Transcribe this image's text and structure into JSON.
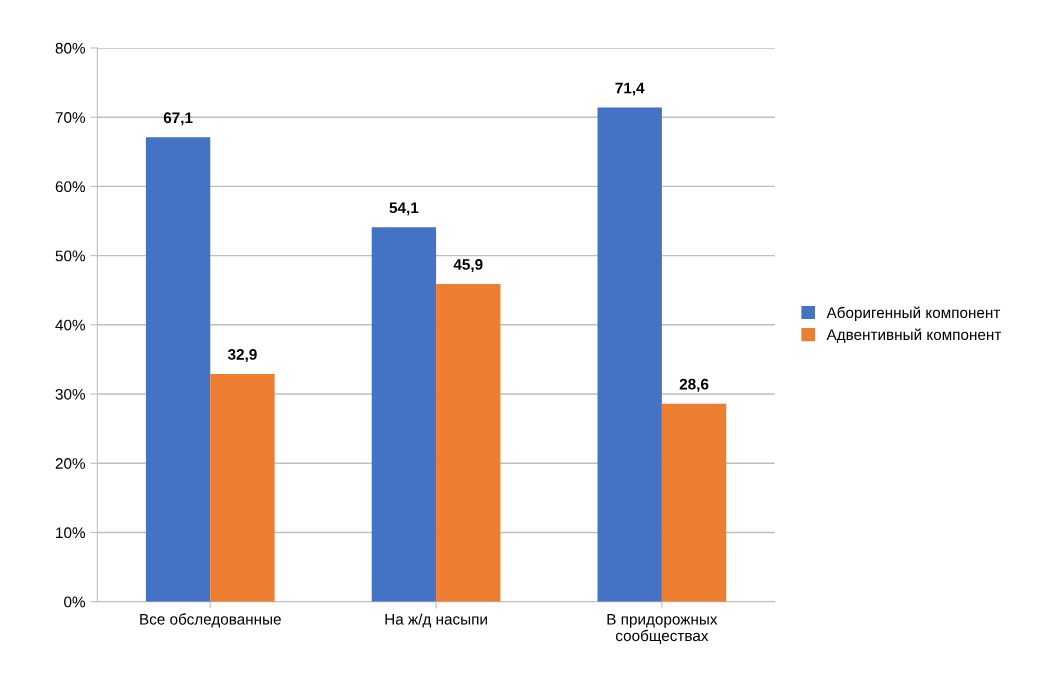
{
  "chart_data": {
    "type": "bar",
    "categories": [
      "Все обследованные",
      "На ж/д насыпи",
      "В придорожных\nсообществах"
    ],
    "series": [
      {
        "name": "Аборигенный компонент",
        "color": "#4472c4",
        "values": [
          67.1,
          54.1,
          71.4
        ],
        "value_labels": [
          "67,1",
          "54,1",
          "71,4"
        ]
      },
      {
        "name": "Адвентивный компонент",
        "color": "#ed7d31",
        "values": [
          32.9,
          45.9,
          28.6
        ],
        "value_labels": [
          "32,9",
          "45,9",
          "28,6"
        ]
      }
    ],
    "ylim": [
      0,
      80
    ],
    "yticks": [
      {
        "value": 0,
        "label": "0%"
      },
      {
        "value": 10,
        "label": "10%"
      },
      {
        "value": 20,
        "label": "20%"
      },
      {
        "value": 30,
        "label": "30%"
      },
      {
        "value": 40,
        "label": "40%"
      },
      {
        "value": 50,
        "label": "50%"
      },
      {
        "value": 60,
        "label": "60%"
      },
      {
        "value": 70,
        "label": "70%"
      },
      {
        "value": 80,
        "label": "80%"
      }
    ],
    "grid": "y",
    "legend": "right"
  }
}
